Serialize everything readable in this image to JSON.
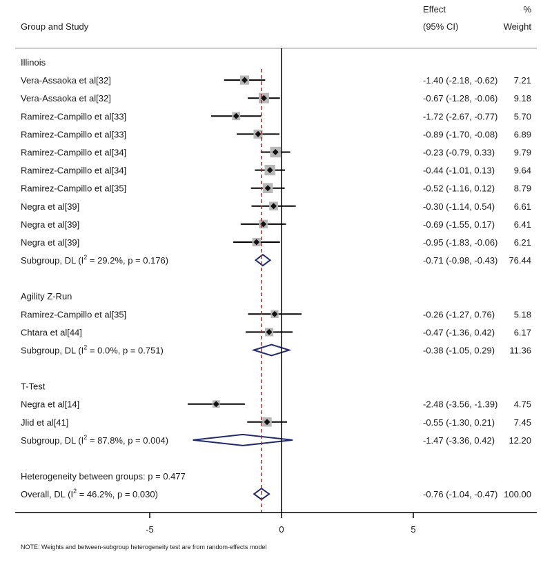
{
  "header": {
    "group_study": "Group and Study",
    "effect": "Effect",
    "ci": "(95% CI)",
    "pct": "%",
    "weight": "Weight"
  },
  "note": "NOTE: Weights and between-subgroup heterogeneity test are from random-effects model",
  "colors": {
    "diamond": "#1f2a6e",
    "ref_line": "#9b2c2c",
    "weight_box": "#b8b8b8",
    "point": "#111111",
    "axis": "#000000"
  },
  "chart_data": {
    "type": "forest",
    "xlim": [
      -10,
      10
    ],
    "xticks": [
      -5,
      0,
      5
    ],
    "null_line": 0,
    "overall_effect": -0.76,
    "groups": [
      {
        "name": "Illinois",
        "studies": [
          {
            "label": "Vera-Assaoka et al[32]",
            "effect": -1.4,
            "lo": -2.18,
            "hi": -0.62,
            "ci_text": "-1.40 (-2.18, -0.62)",
            "weight": 7.21,
            "weight_text": "7.21"
          },
          {
            "label": "Vera-Assaoka et al[32]",
            "effect": -0.67,
            "lo": -1.28,
            "hi": -0.06,
            "ci_text": "-0.67 (-1.28, -0.06)",
            "weight": 9.18,
            "weight_text": "9.18"
          },
          {
            "label": "Ramirez-Campillo et al[33]",
            "effect": -1.72,
            "lo": -2.67,
            "hi": -0.77,
            "ci_text": "-1.72 (-2.67, -0.77)",
            "weight": 5.7,
            "weight_text": "5.70"
          },
          {
            "label": "Ramirez-Campillo et al[33]",
            "effect": -0.89,
            "lo": -1.7,
            "hi": -0.08,
            "ci_text": "-0.89 (-1.70, -0.08)",
            "weight": 6.89,
            "weight_text": "6.89"
          },
          {
            "label": "Ramirez-Campillo et al[34]",
            "effect": -0.23,
            "lo": -0.79,
            "hi": 0.33,
            "ci_text": "-0.23 (-0.79, 0.33)",
            "weight": 9.79,
            "weight_text": "9.79"
          },
          {
            "label": "Ramirez-Campillo et al[34]",
            "effect": -0.44,
            "lo": -1.01,
            "hi": 0.13,
            "ci_text": "-0.44 (-1.01, 0.13)",
            "weight": 9.64,
            "weight_text": "9.64"
          },
          {
            "label": "Ramirez-Campillo et al[35]",
            "effect": -0.52,
            "lo": -1.16,
            "hi": 0.12,
            "ci_text": "-0.52 (-1.16, 0.12)",
            "weight": 8.79,
            "weight_text": "8.79"
          },
          {
            "label": "Negra et al[39]",
            "effect": -0.3,
            "lo": -1.14,
            "hi": 0.54,
            "ci_text": "-0.30 (-1.14, 0.54)",
            "weight": 6.61,
            "weight_text": "6.61"
          },
          {
            "label": "Negra et al[39]",
            "effect": -0.69,
            "lo": -1.55,
            "hi": 0.17,
            "ci_text": "-0.69 (-1.55, 0.17)",
            "weight": 6.41,
            "weight_text": "6.41"
          },
          {
            "label": "Negra et al[39]",
            "effect": -0.95,
            "lo": -1.83,
            "hi": -0.06,
            "ci_text": "-0.95 (-1.83, -0.06)",
            "weight": 6.21,
            "weight_text": "6.21"
          }
        ],
        "subgroup": {
          "label_pre": "Subgroup, DL (I",
          "sup": "2",
          "label_post": " = 29.2%, p = 0.176)",
          "effect": -0.71,
          "lo": -0.98,
          "hi": -0.43,
          "ci_text": "-0.71 (-0.98, -0.43)",
          "weight_text": "76.44"
        }
      },
      {
        "name": "Agility Z-Run",
        "studies": [
          {
            "label": "Ramirez-Campillo et al[35]",
            "effect": -0.26,
            "lo": -1.27,
            "hi": 0.76,
            "ci_text": "-0.26 (-1.27, 0.76)",
            "weight": 5.18,
            "weight_text": "5.18"
          },
          {
            "label": "Chtara et al[44]",
            "effect": -0.47,
            "lo": -1.36,
            "hi": 0.42,
            "ci_text": "-0.47 (-1.36, 0.42)",
            "weight": 6.17,
            "weight_text": "6.17"
          }
        ],
        "subgroup": {
          "label_pre": "Subgroup, DL (I",
          "sup": "2",
          "label_post": " = 0.0%, p = 0.751)",
          "effect": -0.38,
          "lo": -1.05,
          "hi": 0.29,
          "ci_text": "-0.38 (-1.05, 0.29)",
          "weight_text": "11.36"
        }
      },
      {
        "name": "T-Test",
        "studies": [
          {
            "label": "Negra et al[14]",
            "effect": -2.48,
            "lo": -3.56,
            "hi": -1.39,
            "ci_text": "-2.48 (-3.56, -1.39)",
            "weight": 4.75,
            "weight_text": "4.75"
          },
          {
            "label": "Jlid et al[41]",
            "effect": -0.55,
            "lo": -1.3,
            "hi": 0.21,
            "ci_text": "-0.55 (-1.30, 0.21)",
            "weight": 7.45,
            "weight_text": "7.45"
          }
        ],
        "subgroup": {
          "label_pre": "Subgroup, DL (I",
          "sup": "2",
          "label_post": " = 87.8%, p = 0.004)",
          "effect": -1.47,
          "lo": -3.36,
          "hi": 0.42,
          "ci_text": "-1.47 (-3.36, 0.42)",
          "weight_text": "12.20"
        }
      }
    ],
    "heterogeneity": "Heterogeneity between groups: p = 0.477",
    "overall": {
      "label_pre": "Overall, DL (I",
      "sup": "2",
      "label_post": " = 46.2%, p = 0.030)",
      "effect": -0.76,
      "lo": -1.04,
      "hi": -0.47,
      "ci_text": "-0.76 (-1.04, -0.47)",
      "weight_text": "100.00"
    }
  }
}
